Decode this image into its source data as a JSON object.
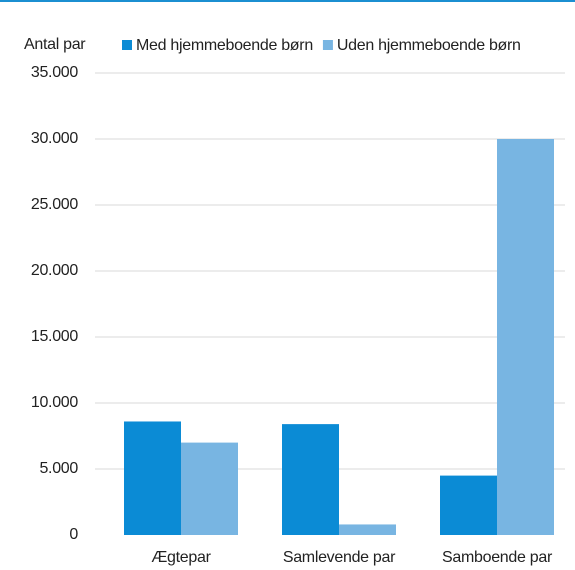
{
  "chart_data": {
    "type": "bar",
    "y_label": "Antal par",
    "categories": [
      "Ægtepar",
      "Samlevende par",
      "Samboende par"
    ],
    "series": [
      {
        "name": "Med hjemmeboende børn",
        "color": "#0b8bd5",
        "values": [
          8600,
          8400,
          4500
        ]
      },
      {
        "name": "Uden hjemmeboende børn",
        "color": "#78b5e2",
        "values": [
          7000,
          800,
          30000
        ]
      }
    ],
    "ylim": [
      0,
      35000
    ],
    "yticks": [
      0,
      {
        "value": 5000,
        "label": "5.000"
      },
      {
        "value": 10000,
        "label": "10.000"
      },
      {
        "value": 15000,
        "label": "15.000"
      },
      {
        "value": 20000,
        "label": "20.000"
      },
      {
        "value": 25000,
        "label": "25.000"
      },
      {
        "value": 30000,
        "label": "30.000"
      },
      {
        "value": 35000,
        "label": "35.000"
      }
    ],
    "grid": true
  }
}
